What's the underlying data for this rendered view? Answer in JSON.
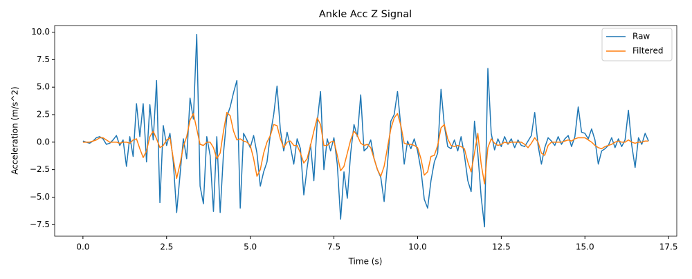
{
  "chart_data": {
    "type": "line",
    "title": "Ankle Acc Z Signal",
    "x_label": "Time (s)",
    "y_label": "Acceleration (m/s^2)",
    "x": [
      0,
      0.1,
      0.2,
      0.3,
      0.4,
      0.5,
      0.6,
      0.7,
      0.8,
      0.9,
      1,
      1.1,
      1.2,
      1.3,
      1.4,
      1.5,
      1.6,
      1.7,
      1.8,
      1.9,
      2,
      2.1,
      2.2,
      2.3,
      2.4,
      2.5,
      2.6,
      2.7,
      2.8,
      2.9,
      3,
      3.1,
      3.2,
      3.3,
      3.4,
      3.5,
      3.6,
      3.7,
      3.8,
      3.9,
      4,
      4.1,
      4.2,
      4.3,
      4.4,
      4.5,
      4.6,
      4.7,
      4.8,
      4.9,
      5,
      5.1,
      5.2,
      5.3,
      5.4,
      5.5,
      5.6,
      5.7,
      5.8,
      5.9,
      6,
      6.1,
      6.2,
      6.3,
      6.4,
      6.5,
      6.6,
      6.7,
      6.8,
      6.9,
      7,
      7.1,
      7.2,
      7.3,
      7.4,
      7.5,
      7.6,
      7.7,
      7.8,
      7.9,
      8,
      8.1,
      8.2,
      8.3,
      8.4,
      8.5,
      8.6,
      8.7,
      8.8,
      8.9,
      9,
      9.1,
      9.2,
      9.3,
      9.4,
      9.5,
      9.6,
      9.7,
      9.8,
      9.9,
      10,
      10.1,
      10.2,
      10.3,
      10.4,
      10.5,
      10.6,
      10.7,
      10.8,
      10.9,
      11,
      11.1,
      11.2,
      11.3,
      11.4,
      11.5,
      11.6,
      11.7,
      11.8,
      11.9,
      12,
      12.1,
      12.2,
      12.3,
      12.4,
      12.5,
      12.6,
      12.7,
      12.8,
      12.9,
      13,
      13.1,
      13.2,
      13.3,
      13.4,
      13.5,
      13.6,
      13.7,
      13.8,
      13.9,
      14,
      14.1,
      14.2,
      14.3,
      14.4,
      14.5,
      14.6,
      14.7,
      14.8,
      14.9,
      15,
      15.1,
      15.2,
      15.3,
      15.4,
      15.5,
      15.6,
      15.7,
      15.8,
      15.9,
      16,
      16.1,
      16.2,
      16.3,
      16.4,
      16.5,
      16.6,
      16.7,
      16.8,
      16.9
    ],
    "series": [
      {
        "name": "Raw",
        "color": "#1f77b4",
        "values": [
          0.1,
          0,
          -0.1,
          0.1,
          0.4,
          0.5,
          0.3,
          -0.2,
          -0.1,
          0.2,
          0.6,
          -0.3,
          0.2,
          -2.2,
          0.5,
          -1.3,
          3.5,
          0.5,
          3.5,
          -1.8,
          3.4,
          0.2,
          5.6,
          -5.5,
          1.5,
          -0.3,
          0.8,
          -1.8,
          -6.4,
          -3.0,
          0.3,
          -1.5,
          4.0,
          2.1,
          9.8,
          -4.0,
          -5.6,
          0.5,
          -1.2,
          -6.3,
          0.5,
          -6.4,
          -1.0,
          2.3,
          3.2,
          4.5,
          5.6,
          -6.0,
          0.8,
          0.2,
          -0.5,
          0.6,
          -1.0,
          -4.0,
          -2.7,
          -1.8,
          0.7,
          2.5,
          5.1,
          1.1,
          -0.8,
          0.9,
          -0.4,
          -2.0,
          0.3,
          -0.6,
          -4.8,
          -2.3,
          -0.2,
          -3.5,
          1.8,
          4.6,
          -2.5,
          0.3,
          -0.8,
          0.4,
          -2.0,
          -7.0,
          -2.7,
          -5.1,
          -1.0,
          1.6,
          0.5,
          4.3,
          -0.8,
          -0.5,
          0.2,
          -1.5,
          -2.5,
          -3.2,
          -5.4,
          -2.0,
          1.9,
          2.5,
          4.6,
          1.4,
          -2.0,
          0.1,
          -0.6,
          0.3,
          -0.8,
          -2.5,
          -5.2,
          -6.0,
          -3.5,
          -1.8,
          -1.0,
          4.8,
          1.5,
          -0.4,
          -0.6,
          0.2,
          -0.8,
          0.5,
          -1.2,
          -3.5,
          -4.5,
          1.9,
          -1.0,
          -5.0,
          -7.7,
          6.7,
          0.8,
          -0.7,
          0.3,
          -0.4,
          0.5,
          -0.2,
          0.3,
          -0.5,
          0.2,
          -0.3,
          -0.4,
          0.1,
          0.6,
          2.7,
          -0.3,
          -2.0,
          -0.5,
          0.4,
          0.1,
          -0.3,
          0.5,
          -0.2,
          0.3,
          0.6,
          -0.4,
          0.5,
          3.2,
          0.9,
          0.8,
          0.3,
          1.2,
          0.2,
          -2.0,
          -0.8,
          -0.6,
          -0.3,
          0.4,
          -0.5,
          0.3,
          -0.4,
          0.2,
          2.9,
          -0.3,
          -2.3,
          0.4,
          -0.2,
          0.8,
          0.1
        ]
      },
      {
        "name": "Filtered",
        "color": "#ff7f0e",
        "values": [
          0,
          0,
          0,
          0.1,
          0.2,
          0.4,
          0.4,
          0.2,
          0,
          0,
          0,
          -0.1,
          0,
          0,
          -0.1,
          0.2,
          0.3,
          -0.6,
          -1.4,
          -0.8,
          0.5,
          1.0,
          0.3,
          -0.5,
          -0.3,
          0.2,
          0.4,
          -1.5,
          -3.3,
          -2.0,
          -0.4,
          0.5,
          2.0,
          2.6,
          1.2,
          -0.2,
          -0.3,
          0,
          0,
          -0.5,
          -1.5,
          -1.0,
          1.0,
          2.7,
          2.4,
          1.0,
          0.2,
          0.3,
          0.1,
          0,
          -0.3,
          -1.5,
          -3.1,
          -2.5,
          -1.0,
          0,
          0.6,
          1.6,
          1.5,
          0.3,
          -0.5,
          0,
          0.1,
          -0.3,
          -0.3,
          -1.0,
          -1.9,
          -1.5,
          -0.3,
          1.0,
          2.2,
          1.6,
          -0.3,
          -0.3,
          0,
          0.1,
          -1.2,
          -2.6,
          -2.2,
          -1.0,
          0.2,
          1.0,
          0.6,
          -0.1,
          -0.3,
          -0.2,
          -0.5,
          -1.5,
          -2.5,
          -3.1,
          -2.2,
          -0.5,
          1.2,
          2.2,
          2.6,
          1.5,
          -0.1,
          -0.2,
          -0.2,
          -0.3,
          -0.5,
          -1.5,
          -3.0,
          -2.7,
          -1.3,
          -1.2,
          -0.3,
          1.3,
          1.6,
          0.3,
          -0.3,
          -0.4,
          -0.3,
          -0.4,
          -0.6,
          -1.8,
          -2.7,
          -1.0,
          0.8,
          -2.0,
          -3.8,
          -0.5,
          0.3,
          -0.1,
          -0.3,
          -0.2,
          0,
          -0.1,
          0,
          0,
          0,
          0,
          -0.2,
          -0.5,
          -0.1,
          0.4,
          0,
          -1.0,
          -1.2,
          -0.3,
          0,
          0,
          0,
          0,
          0.1,
          0.2,
          0.1,
          0.3,
          0.4,
          0.4,
          0.4,
          0.2,
          0,
          -0.3,
          -0.5,
          -0.6,
          -0.4,
          -0.3,
          -0.2,
          0,
          0.1,
          0,
          0,
          0.2,
          0,
          -0.1,
          0,
          0,
          0.1,
          0.1
        ]
      }
    ],
    "xlim": [
      -0.845,
      17.745
    ],
    "xticks": [
      {
        "value": 0,
        "label": "0.0"
      },
      2.5,
      {
        "value": 5,
        "label": "5.0"
      },
      7.5,
      {
        "value": 10,
        "label": "10.0"
      },
      12.5,
      {
        "value": 15,
        "label": "15.0"
      },
      17.5
    ],
    "ylim": [
      -8.55,
      10.6
    ],
    "yticks": [
      {
        "value": -7.5,
        "label": "−7.5"
      },
      {
        "value": -5,
        "label": "−5.0"
      },
      {
        "value": -2.5,
        "label": "−2.5"
      },
      {
        "value": 0,
        "label": "0.0"
      },
      2.5,
      {
        "value": 5,
        "label": "5.0"
      },
      7.5,
      {
        "value": 10,
        "label": "10.0"
      }
    ],
    "grid": false,
    "legend": "upper right"
  }
}
